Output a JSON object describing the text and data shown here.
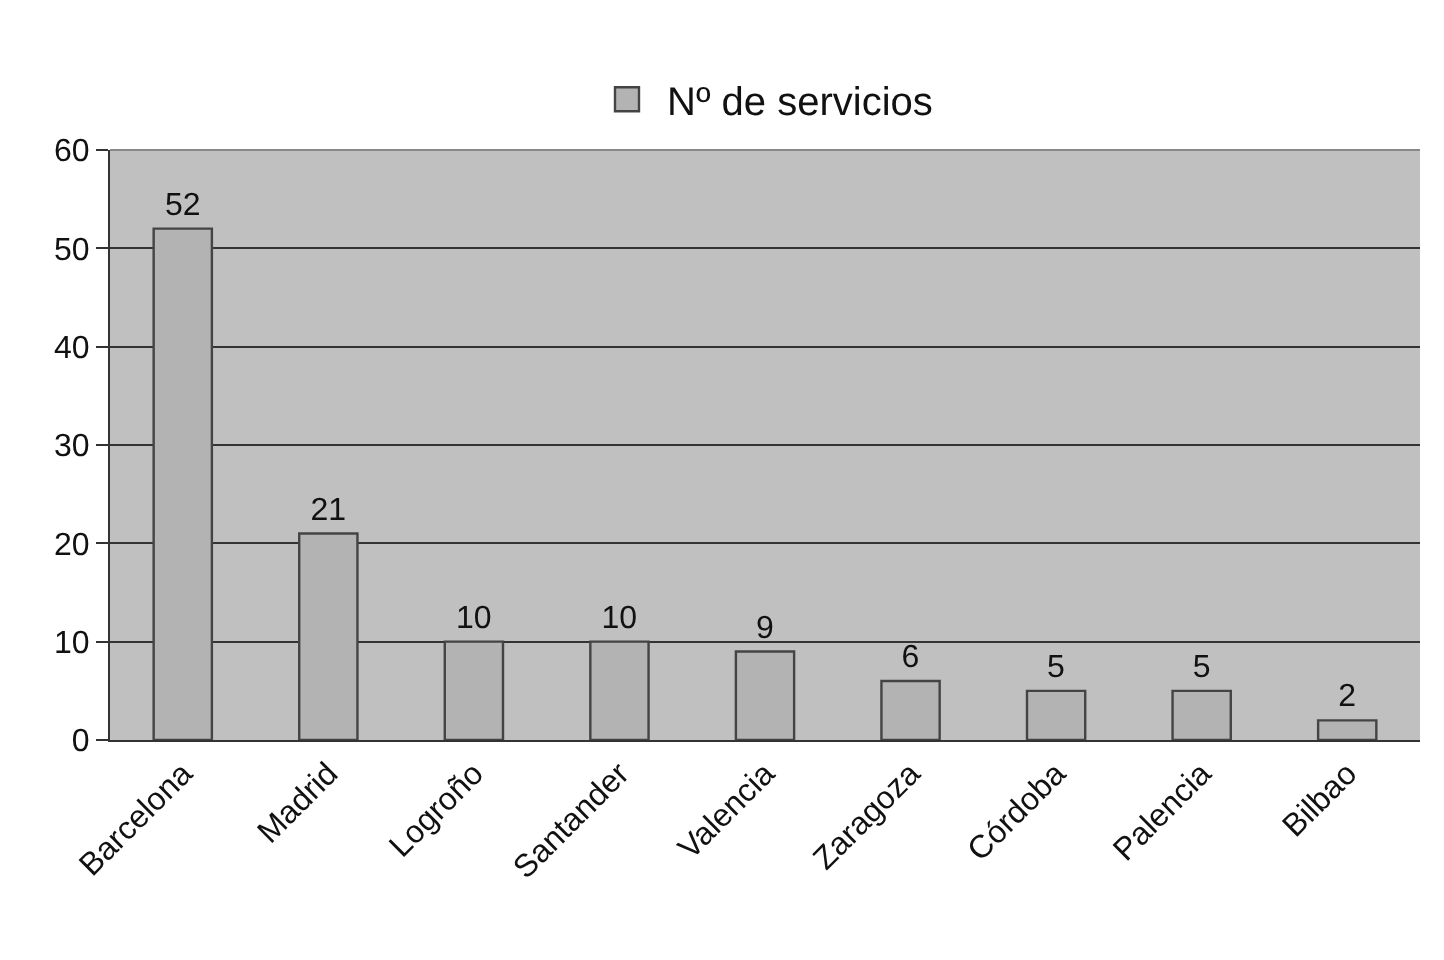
{
  "chart_data": {
    "type": "bar",
    "categories": [
      "Barcelona",
      "Madrid",
      "Logroño",
      "Santander",
      "Valencia",
      "Zaragoza",
      "Córdoba",
      "Palencia",
      "Bilbao"
    ],
    "series": [
      {
        "name": "Nº de servicios",
        "color": "#b3b3b3",
        "values": [
          52,
          21,
          10,
          10,
          9,
          6,
          5,
          5,
          2
        ]
      }
    ],
    "ylim": [
      0,
      60
    ],
    "yticks": [
      0,
      10,
      20,
      30,
      40,
      50,
      60
    ],
    "grid": "y",
    "legend": "top",
    "data_labels": true
  }
}
